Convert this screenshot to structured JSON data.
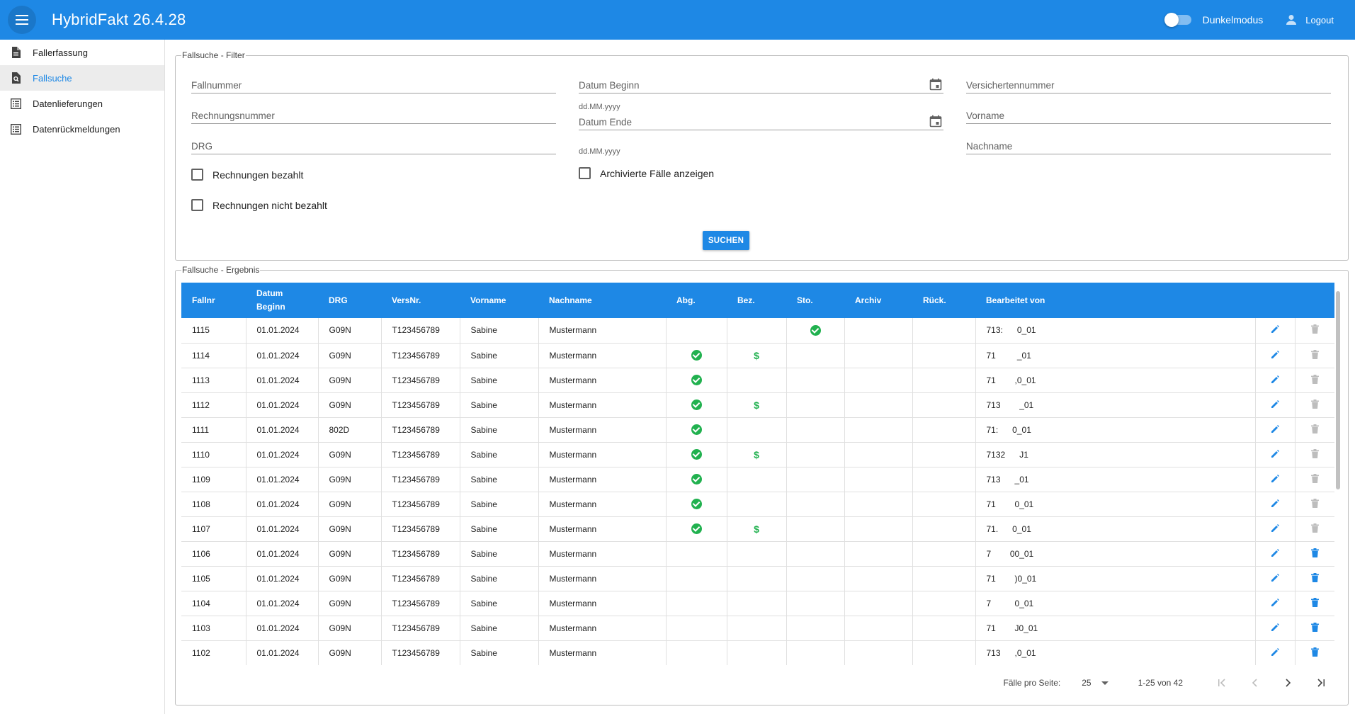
{
  "header": {
    "title": "HybridFakt 26.4.28",
    "darkmode_label": "Dunkelmodus",
    "logout_label": "Logout",
    "accent": "#1e88e5"
  },
  "sidebar": {
    "items": [
      {
        "label": "Fallerfassung",
        "icon": "document-icon",
        "active": false
      },
      {
        "label": "Fallsuche",
        "icon": "document-search-icon",
        "active": true
      },
      {
        "label": "Datenlieferungen",
        "icon": "list-icon",
        "active": false
      },
      {
        "label": "Datenrückmeldungen",
        "icon": "list-icon",
        "active": false
      }
    ]
  },
  "filter": {
    "legend": "Fallsuche - Filter",
    "fields": {
      "fallnummer": "Fallnummer",
      "rechnungsnummer": "Rechnungsnummer",
      "drg": "DRG",
      "datum_beginn": "Datum Beginn",
      "datum_ende": "Datum Ende",
      "date_hint": "dd.MM.yyyy",
      "versichertennummer": "Versichertennummer",
      "vorname": "Vorname",
      "nachname": "Nachname"
    },
    "checkboxes": {
      "bezahlt": "Rechnungen bezahlt",
      "nicht_bezahlt": "Rechnungen nicht bezahlt",
      "archiviert": "Archivierte Fälle anzeigen"
    },
    "search_label": "SUCHEN"
  },
  "results": {
    "legend": "Fallsuche - Ergebnis",
    "columns": [
      "Fallnr",
      "Datum Beginn",
      "DRG",
      "VersNr.",
      "Vorname",
      "Nachname",
      "Abg.",
      "Bez.",
      "Sto.",
      "Archiv",
      "Rück.",
      "Bearbeitet von"
    ],
    "rows": [
      {
        "fallnr": "1115",
        "datum": "01.01.2024",
        "drg": "G09N",
        "versnr": "T123456789",
        "vorname": "Sabine",
        "nachname": "Mustermann",
        "abg": false,
        "bez": false,
        "sto": true,
        "bearbeitet": "713:      0_01",
        "deletable": false
      },
      {
        "fallnr": "1114",
        "datum": "01.01.2024",
        "drg": "G09N",
        "versnr": "T123456789",
        "vorname": "Sabine",
        "nachname": "Mustermann",
        "abg": true,
        "bez": true,
        "sto": false,
        "bearbeitet": "71         _01",
        "deletable": false
      },
      {
        "fallnr": "1113",
        "datum": "01.01.2024",
        "drg": "G09N",
        "versnr": "T123456789",
        "vorname": "Sabine",
        "nachname": "Mustermann",
        "abg": true,
        "bez": false,
        "sto": false,
        "bearbeitet": "71        ,0_01",
        "deletable": false
      },
      {
        "fallnr": "1112",
        "datum": "01.01.2024",
        "drg": "G09N",
        "versnr": "T123456789",
        "vorname": "Sabine",
        "nachname": "Mustermann",
        "abg": true,
        "bez": true,
        "sto": false,
        "bearbeitet": "713        _01",
        "deletable": false
      },
      {
        "fallnr": "1111",
        "datum": "01.01.2024",
        "drg": "802D",
        "versnr": "T123456789",
        "vorname": "Sabine",
        "nachname": "Mustermann",
        "abg": true,
        "bez": false,
        "sto": false,
        "bearbeitet": "71:      0_01",
        "deletable": false
      },
      {
        "fallnr": "1110",
        "datum": "01.01.2024",
        "drg": "G09N",
        "versnr": "T123456789",
        "vorname": "Sabine",
        "nachname": "Mustermann",
        "abg": true,
        "bez": true,
        "sto": false,
        "bearbeitet": "7132      J1",
        "deletable": false
      },
      {
        "fallnr": "1109",
        "datum": "01.01.2024",
        "drg": "G09N",
        "versnr": "T123456789",
        "vorname": "Sabine",
        "nachname": "Mustermann",
        "abg": true,
        "bez": false,
        "sto": false,
        "bearbeitet": "713      _01",
        "deletable": false
      },
      {
        "fallnr": "1108",
        "datum": "01.01.2024",
        "drg": "G09N",
        "versnr": "T123456789",
        "vorname": "Sabine",
        "nachname": "Mustermann",
        "abg": true,
        "bez": false,
        "sto": false,
        "bearbeitet": "71        0_01",
        "deletable": false
      },
      {
        "fallnr": "1107",
        "datum": "01.01.2024",
        "drg": "G09N",
        "versnr": "T123456789",
        "vorname": "Sabine",
        "nachname": "Mustermann",
        "abg": true,
        "bez": true,
        "sto": false,
        "bearbeitet": "71.      0_01",
        "deletable": false
      },
      {
        "fallnr": "1106",
        "datum": "01.01.2024",
        "drg": "G09N",
        "versnr": "T123456789",
        "vorname": "Sabine",
        "nachname": "Mustermann",
        "abg": false,
        "bez": false,
        "sto": false,
        "bearbeitet": "7        00_01",
        "deletable": true
      },
      {
        "fallnr": "1105",
        "datum": "01.01.2024",
        "drg": "G09N",
        "versnr": "T123456789",
        "vorname": "Sabine",
        "nachname": "Mustermann",
        "abg": false,
        "bez": false,
        "sto": false,
        "bearbeitet": "71        )0_01",
        "deletable": true
      },
      {
        "fallnr": "1104",
        "datum": "01.01.2024",
        "drg": "G09N",
        "versnr": "T123456789",
        "vorname": "Sabine",
        "nachname": "Mustermann",
        "abg": false,
        "bez": false,
        "sto": false,
        "bearbeitet": "7          0_01",
        "deletable": true
      },
      {
        "fallnr": "1103",
        "datum": "01.01.2024",
        "drg": "G09N",
        "versnr": "T123456789",
        "vorname": "Sabine",
        "nachname": "Mustermann",
        "abg": false,
        "bez": false,
        "sto": false,
        "bearbeitet": "71        J0_01",
        "deletable": true
      },
      {
        "fallnr": "1102",
        "datum": "01.01.2024",
        "drg": "G09N",
        "versnr": "T123456789",
        "vorname": "Sabine",
        "nachname": "Mustermann",
        "abg": false,
        "bez": false,
        "sto": false,
        "bearbeitet": "713      ,0_01",
        "deletable": true
      }
    ]
  },
  "paginator": {
    "label": "Fälle pro Seite:",
    "page_size": "25",
    "range": "1-25 von 42"
  },
  "colors": {
    "primary": "#1e88e5",
    "success": "#21b14f",
    "disabled": "#bdbdbd"
  }
}
